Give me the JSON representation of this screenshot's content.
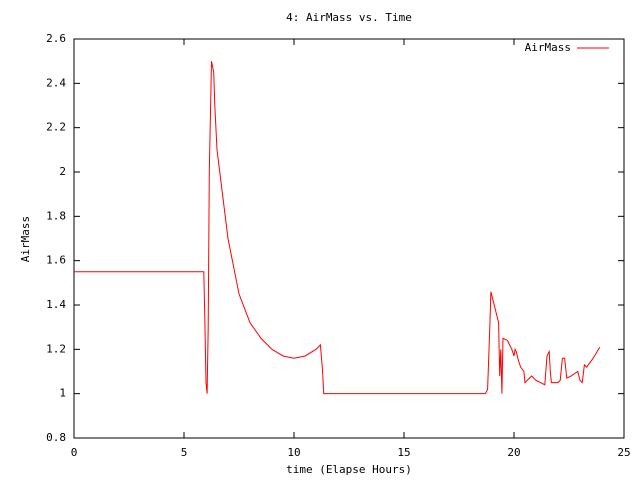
{
  "chart_data": {
    "type": "line",
    "title": "4: AirMass vs. Time",
    "xlabel": "time (Elapse Hours)",
    "ylabel": "AirMass",
    "x": [
      0,
      5.9,
      5.95,
      6.0,
      6.05,
      6.1,
      6.15,
      6.25,
      6.35,
      6.4,
      6.5,
      7,
      7.5,
      8,
      8.5,
      9,
      9.5,
      10,
      10.5,
      11,
      11.2,
      11.3,
      11.35,
      18.7,
      18.8,
      18.9,
      18.95,
      19.1,
      19.3,
      19.35,
      19.4,
      19.45,
      19.5,
      19.7,
      19.9,
      20,
      20.05,
      20.1,
      20.2,
      20.3,
      20.45,
      20.5,
      20.7,
      20.8,
      21,
      21.2,
      21.4,
      21.5,
      21.6,
      21.65,
      21.7,
      22,
      22.1,
      22.2,
      22.3,
      22.4,
      22.6,
      22.9,
      23,
      23.1,
      23.2,
      23.3,
      23.6,
      23.9
    ],
    "series": [
      {
        "name": "AirMass",
        "color": "#ff0000",
        "values": [
          1.55,
          1.55,
          1.32,
          1.05,
          1.0,
          1.3,
          2.0,
          2.5,
          2.45,
          2.3,
          2.1,
          1.7,
          1.45,
          1.32,
          1.25,
          1.2,
          1.17,
          1.16,
          1.17,
          1.2,
          1.22,
          1.1,
          1.0,
          1.0,
          1.02,
          1.3,
          1.46,
          1.4,
          1.32,
          1.08,
          1.2,
          1.0,
          1.25,
          1.24,
          1.2,
          1.17,
          1.2,
          1.19,
          1.15,
          1.12,
          1.1,
          1.05,
          1.07,
          1.08,
          1.06,
          1.05,
          1.04,
          1.17,
          1.19,
          1.1,
          1.05,
          1.05,
          1.06,
          1.16,
          1.16,
          1.07,
          1.08,
          1.1,
          1.06,
          1.05,
          1.13,
          1.12,
          1.16,
          1.21
        ]
      }
    ],
    "xlim": [
      0,
      25
    ],
    "xticks": [
      0,
      5,
      10,
      15,
      20,
      25
    ],
    "ylim": [
      0.8,
      2.6
    ],
    "yticks": [
      0.8,
      1,
      1.2,
      1.4,
      1.6,
      1.8,
      2,
      2.2,
      2.4,
      2.6
    ],
    "grid": false,
    "legend": "top-right"
  }
}
